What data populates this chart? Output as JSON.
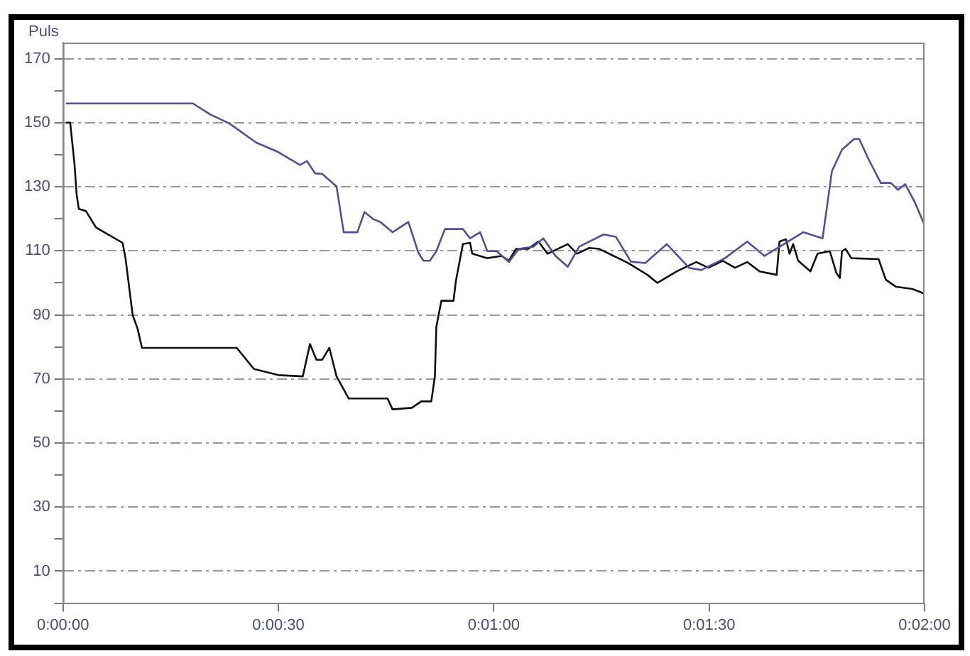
{
  "chart_data": {
    "type": "line",
    "ylabel": "Puls",
    "xlim": [
      0,
      120
    ],
    "ylim": [
      0,
      175
    ],
    "xticks": [
      {
        "value": 0,
        "label": "0:00:00"
      },
      {
        "value": 30,
        "label": "0:00:30"
      },
      {
        "value": 60,
        "label": "0:01:00"
      },
      {
        "value": 90,
        "label": "0:01:30"
      },
      {
        "value": 120,
        "label": "0:02:00"
      }
    ],
    "yticks": [
      {
        "value": 0,
        "label": null
      },
      10,
      {
        "value": 20,
        "label": null
      },
      30,
      {
        "value": 40,
        "label": null
      },
      50,
      {
        "value": 60,
        "label": null
      },
      70,
      {
        "value": 80,
        "label": null
      },
      90,
      {
        "value": 100,
        "label": null
      },
      110,
      {
        "value": 120,
        "label": null
      },
      130,
      {
        "value": 140,
        "label": null
      },
      150,
      {
        "value": 160,
        "label": null
      },
      170
    ],
    "grid": "y",
    "legend": false,
    "marker": "none",
    "line_style": "solid",
    "series": [
      {
        "color": "#50509a",
        "x": [
          0.4,
          18.1,
          20.5,
          23.2,
          26.9,
          30,
          33,
          34,
          35.1,
          36.1,
          38.1,
          39.1,
          41,
          42,
          43.2,
          44.2,
          45.9,
          48.1,
          49.5,
          50.2,
          51.1,
          52,
          53.2,
          55.7,
          56.7,
          58.1,
          59.1,
          60.4,
          62.1,
          63.5,
          65.5,
          66.9,
          68.6,
          70.3,
          71.9,
          75.3,
          77,
          79.1,
          81.1,
          84.1,
          87.2,
          88.9,
          92.2,
          95.3,
          97.7,
          100.4,
          103.1,
          105.8,
          107.1,
          108.5,
          110.2,
          110.9,
          112.2,
          113.9,
          115.3,
          116.3,
          117.3,
          118.6,
          120
        ],
        "values": [
          156,
          156,
          152.6,
          149.7,
          143.8,
          140.8,
          136.8,
          138,
          134.2,
          134,
          130.1,
          115.8,
          115.8,
          122.1,
          119.9,
          119,
          115.8,
          119,
          109.4,
          106.9,
          106.9,
          109.9,
          116.8,
          116.8,
          113.9,
          115.8,
          109.9,
          109.9,
          106.5,
          110.6,
          111.3,
          113.9,
          108.4,
          105,
          111.3,
          115.1,
          114.4,
          106.6,
          106.2,
          112.1,
          104.7,
          104,
          107.7,
          112.9,
          108.4,
          112.1,
          115.8,
          113.9,
          134.9,
          141.6,
          144.9,
          144.9,
          138.6,
          131.2,
          131.2,
          129,
          130.8,
          125.4,
          118
        ]
      },
      {
        "color": "#101010",
        "x": [
          0.4,
          1,
          1.6,
          1.9,
          2.2,
          3.2,
          4.6,
          6.3,
          8.3,
          8.7,
          9.7,
          10.4,
          11,
          24.2,
          26.6,
          30,
          33.4,
          34.4,
          35.3,
          36.1,
          37.1,
          38.1,
          39.8,
          45.2,
          45.9,
          48.6,
          49.9,
          51.3,
          51.8,
          52,
          52.7,
          54.4,
          54.7,
          55.7,
          56.7,
          57,
          59.1,
          61.1,
          62.1,
          63.1,
          64.8,
          66.2,
          67.5,
          68.9,
          70.3,
          71.6,
          73.3,
          74.7,
          76.7,
          78.7,
          81.4,
          82.8,
          85.5,
          88.2,
          89.9,
          91.9,
          93.6,
          95.3,
          97,
          99.4,
          99.8,
          100.7,
          101.2,
          101.7,
          102.4,
          104.1,
          105.1,
          106.8,
          107.7,
          108.2,
          108.5,
          109,
          109.8,
          113.6,
          114.6,
          116,
          118.3,
          120
        ],
        "values": [
          150,
          150,
          137.2,
          127.6,
          123.1,
          122.4,
          117.3,
          115.1,
          112.5,
          107.8,
          90,
          85.6,
          79.7,
          79.7,
          73.1,
          71.2,
          70.8,
          80.9,
          76,
          76,
          79.7,
          70.8,
          63.9,
          63.9,
          60.5,
          61,
          63,
          63,
          70.9,
          86.3,
          94.4,
          94.4,
          100.3,
          112.1,
          112.5,
          109.1,
          107.7,
          108.4,
          106.9,
          110.6,
          110.6,
          112.9,
          109.1,
          110.6,
          112.1,
          109.1,
          110.9,
          110.6,
          108.4,
          106.2,
          102.5,
          100,
          103.6,
          106.5,
          104.7,
          106.9,
          104.7,
          106.5,
          103.6,
          102.5,
          112.9,
          113.6,
          109.1,
          112.1,
          106.9,
          103.6,
          109.1,
          109.9,
          103.2,
          101.5,
          109.9,
          110.6,
          107.7,
          107.4,
          101,
          98.8,
          98.1,
          96.6
        ]
      }
    ]
  }
}
